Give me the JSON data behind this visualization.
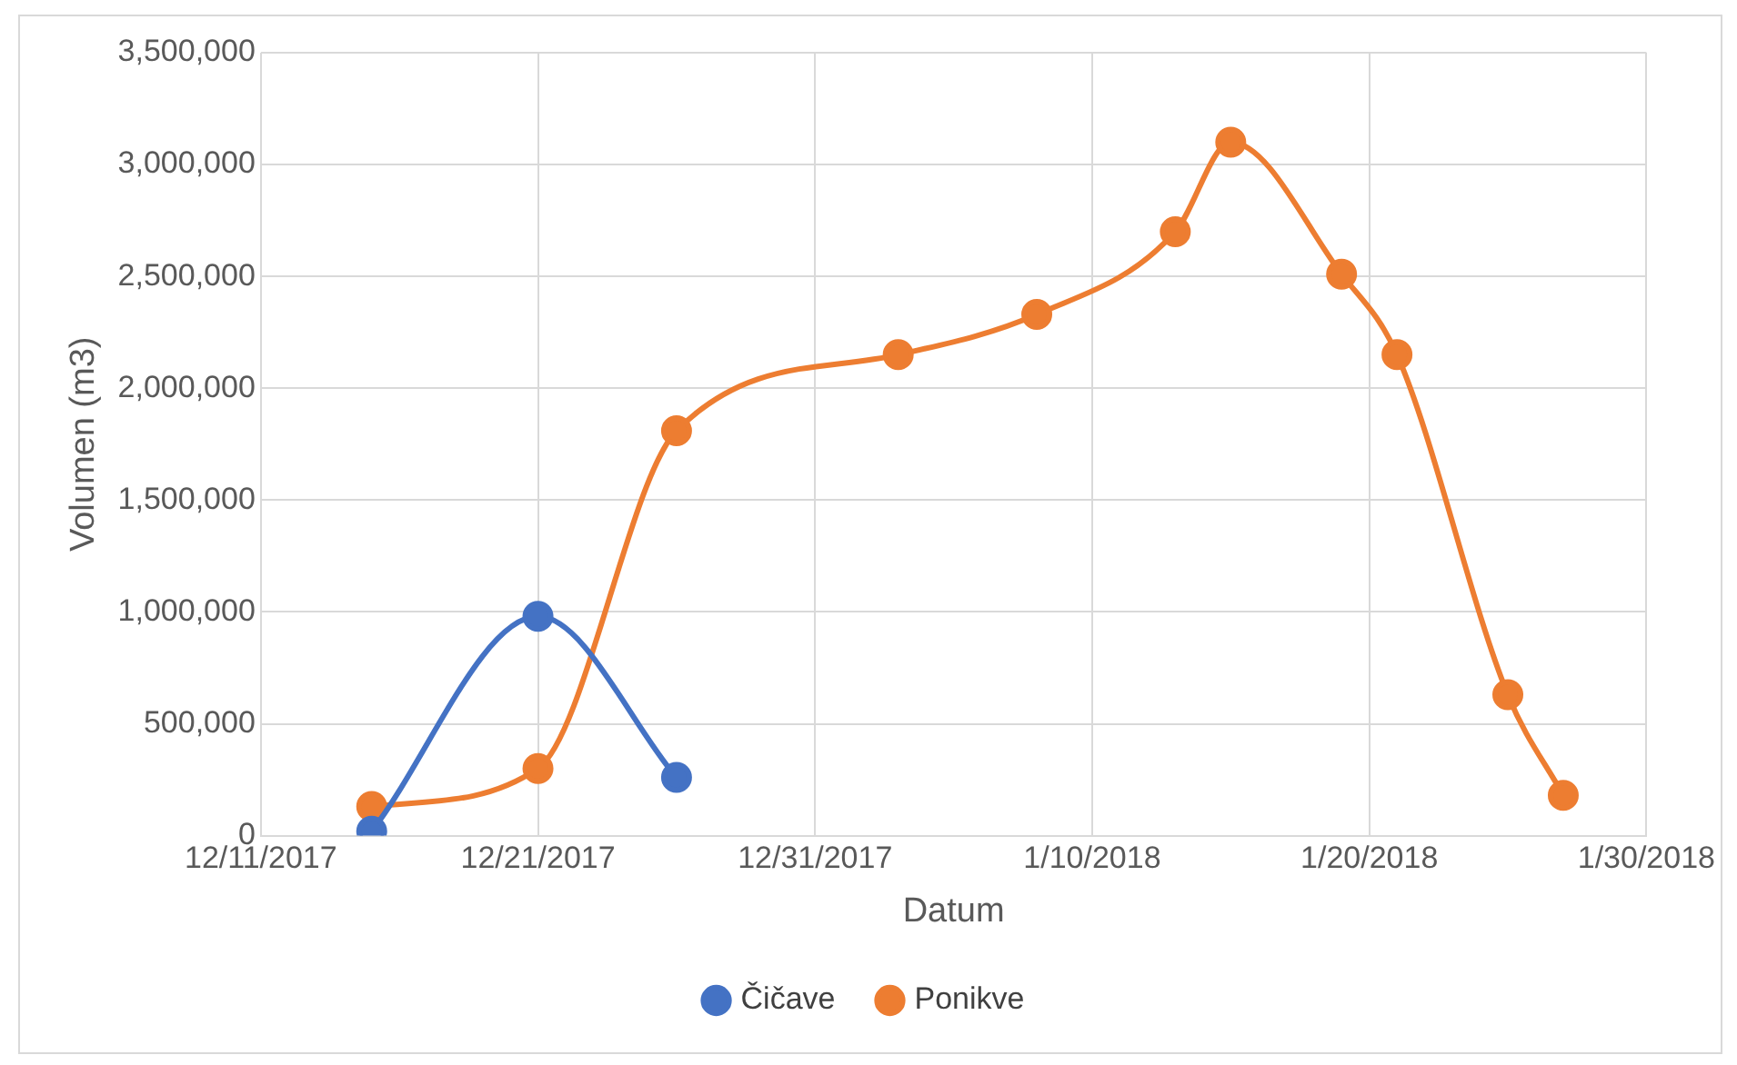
{
  "chart_data": {
    "type": "line",
    "xlabel": "Datum",
    "ylabel": "Volumen (m3)",
    "xlim": [
      "2017-12-11",
      "2018-01-30"
    ],
    "xticks": [
      {
        "value": "2017-12-11",
        "label": "12/11/2017"
      },
      {
        "value": "2017-12-21",
        "label": "12/21/2017"
      },
      {
        "value": "2017-12-31",
        "label": "12/31/2017"
      },
      {
        "value": "2018-01-10",
        "label": "1/10/2018"
      },
      {
        "value": "2018-01-20",
        "label": "1/20/2018"
      },
      {
        "value": "2018-01-30",
        "label": "1/30/2018"
      }
    ],
    "ylim": [
      0,
      3500000
    ],
    "yticks": [
      {
        "value": 0,
        "label": "0"
      },
      {
        "value": 500000,
        "label": "500,000"
      },
      {
        "value": 1000000,
        "label": "1,000,000"
      },
      {
        "value": 1500000,
        "label": "1,500,000"
      },
      {
        "value": 2000000,
        "label": "2,000,000"
      },
      {
        "value": 2500000,
        "label": "2,500,000"
      },
      {
        "value": 3000000,
        "label": "3,000,000"
      },
      {
        "value": 3500000,
        "label": "3,500,000"
      }
    ],
    "series": [
      {
        "name": "Čičave",
        "color": "#4472c4",
        "x": [
          "2017-12-15",
          "2017-12-21",
          "2017-12-26"
        ],
        "values": [
          20000,
          980000,
          260000
        ]
      },
      {
        "name": "Ponikve",
        "color": "#ed7d31",
        "x": [
          "2017-12-15",
          "2017-12-21",
          "2017-12-26",
          "2018-01-03",
          "2018-01-08",
          "2018-01-13",
          "2018-01-15",
          "2018-01-19",
          "2018-01-21",
          "2018-01-25",
          "2018-01-27"
        ],
        "values": [
          130000,
          300000,
          1810000,
          2150000,
          2330000,
          2700000,
          3100000,
          2510000,
          2150000,
          630000,
          180000
        ]
      }
    ],
    "grid": true,
    "legend": "bottom",
    "marker": "circle",
    "line_style": "solid"
  }
}
